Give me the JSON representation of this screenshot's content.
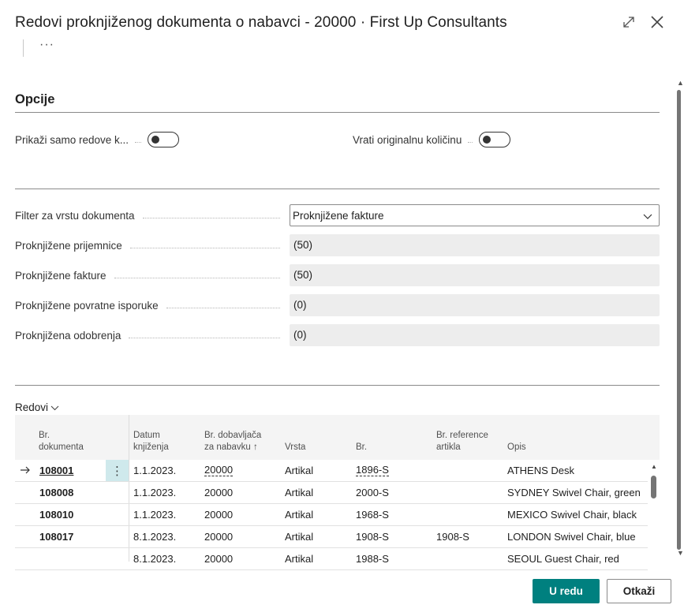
{
  "header": {
    "title": "Redovi proknjiženog dokumenta o nabavci - 20000 · First Up Consultants",
    "more_label": "···"
  },
  "options": {
    "section_title": "Opcije",
    "toggle_show_only": {
      "label": "Prikaži samo redove k...",
      "on": false
    },
    "toggle_revert_qty": {
      "label": "Vrati originalnu količinu",
      "on": false
    }
  },
  "filters": {
    "doc_type_filter": {
      "label": "Filter za vrstu dokumenta",
      "value": "Proknjižene fakture"
    },
    "fields": [
      {
        "label": "Proknjižene prijemnice",
        "value": "(50)"
      },
      {
        "label": "Proknjižene fakture",
        "value": "(50)"
      },
      {
        "label": "Proknjižene povratne isporuke",
        "value": "(0)"
      },
      {
        "label": "Proknjižena odobrenja",
        "value": "(0)"
      }
    ]
  },
  "lines": {
    "title": "Redovi",
    "columns": {
      "doc_no": [
        "Br.",
        "dokumenta"
      ],
      "posting_date": [
        "Datum",
        "knjiženja"
      ],
      "vendor_no": [
        "Br. dobavljača",
        "za nabavku ↑"
      ],
      "type": "Vrsta",
      "no": "Br.",
      "item_ref": [
        "Br. reference",
        "artikla"
      ],
      "description": "Opis"
    },
    "rows": [
      {
        "doc_no": "108001",
        "date": "1.1.2023.",
        "vendor": "20000",
        "type": "Artikal",
        "no": "1896-S",
        "ref": "",
        "desc": "ATHENS Desk"
      },
      {
        "doc_no": "108008",
        "date": "1.1.2023.",
        "vendor": "20000",
        "type": "Artikal",
        "no": "2000-S",
        "ref": "",
        "desc": "SYDNEY Swivel Chair, green"
      },
      {
        "doc_no": "108010",
        "date": "1.1.2023.",
        "vendor": "20000",
        "type": "Artikal",
        "no": "1968-S",
        "ref": "",
        "desc": "MEXICO Swivel Chair, black"
      },
      {
        "doc_no": "108017",
        "date": "8.1.2023.",
        "vendor": "20000",
        "type": "Artikal",
        "no": "1908-S",
        "ref": "1908-S",
        "desc": "LONDON Swivel Chair, blue"
      },
      {
        "doc_no": "",
        "date": "8.1.2023.",
        "vendor": "20000",
        "type": "Artikal",
        "no": "1988-S",
        "ref": "",
        "desc": "SEOUL Guest Chair, red"
      }
    ]
  },
  "footer": {
    "ok_label": "U redu",
    "cancel_label": "Otkaži"
  },
  "colors": {
    "accent": "#00807f",
    "selected_cell": "#cfe9ec"
  }
}
